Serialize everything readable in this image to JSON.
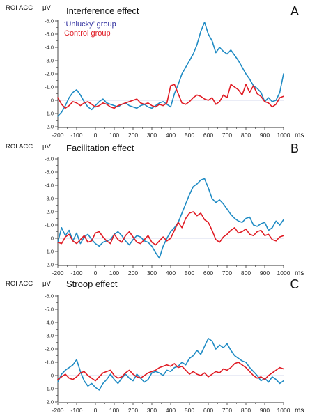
{
  "colors": {
    "unlucky": "#1f8bc4",
    "control": "#e01b24",
    "legend_unlucky": "#2e2e9e",
    "legend_control": "#e01b24",
    "axis": "#333333",
    "baseline": "#c8cde6"
  },
  "legend": {
    "unlucky": "‘Unlucky’ group",
    "control": "Control group"
  },
  "x_unit": "ms",
  "chart_data": [
    {
      "type": "line",
      "panel_letter": "A",
      "title": "Interference effect",
      "ylabel": "ROI ACC",
      "yunit": "μV",
      "xlim": [
        -200,
        1000
      ],
      "ylim": [
        -6.0,
        2.0
      ],
      "y_inverted": true,
      "x_ticks": [
        "-200",
        "-100",
        "0",
        "100",
        "200",
        "300",
        "400",
        "500",
        "600",
        "700",
        "800",
        "900",
        "1000"
      ],
      "y_ticks": [
        "-6.0",
        "-5.0",
        "-4.0",
        "-3.0",
        "-2.0",
        "-1.0",
        "0",
        "1.0",
        "2.0"
      ],
      "series": [
        {
          "name": "‘Unlucky’ group",
          "x": [
            -200,
            -180,
            -160,
            -140,
            -120,
            -100,
            -80,
            -60,
            -40,
            -20,
            0,
            20,
            40,
            60,
            80,
            100,
            120,
            140,
            160,
            180,
            200,
            220,
            240,
            260,
            280,
            300,
            320,
            340,
            360,
            380,
            400,
            420,
            440,
            460,
            480,
            500,
            520,
            540,
            560,
            580,
            600,
            620,
            640,
            660,
            680,
            700,
            720,
            740,
            760,
            780,
            800,
            820,
            840,
            860,
            880,
            900,
            920,
            940,
            960,
            980,
            1000
          ],
          "y": [
            1.2,
            0.9,
            0.4,
            -0.2,
            -0.6,
            -0.8,
            -0.4,
            0.1,
            0.5,
            0.7,
            0.4,
            0.1,
            -0.1,
            0.2,
            0.3,
            0.4,
            0.5,
            0.3,
            0.2,
            0.4,
            0.5,
            0.6,
            0.4,
            0.3,
            0.5,
            0.6,
            0.4,
            0.2,
            0.1,
            0.3,
            0.5,
            -0.5,
            -1.2,
            -2.0,
            -2.5,
            -3.0,
            -3.5,
            -4.2,
            -5.2,
            -5.9,
            -5.0,
            -4.5,
            -3.6,
            -4.0,
            -3.7,
            -3.5,
            -3.8,
            -3.4,
            -3.0,
            -2.5,
            -2.0,
            -1.6,
            -1.1,
            -0.9,
            -0.6,
            0.1,
            -0.2,
            0.1,
            0.0,
            -0.6,
            -2.0
          ]
        },
        {
          "name": "Control group",
          "x": [
            -200,
            -180,
            -160,
            -140,
            -120,
            -100,
            -80,
            -60,
            -40,
            -20,
            0,
            20,
            40,
            60,
            80,
            100,
            120,
            140,
            160,
            180,
            200,
            220,
            240,
            260,
            280,
            300,
            320,
            340,
            360,
            380,
            400,
            420,
            440,
            460,
            480,
            500,
            520,
            540,
            560,
            580,
            600,
            620,
            640,
            660,
            680,
            700,
            720,
            740,
            760,
            780,
            800,
            820,
            840,
            860,
            880,
            900,
            920,
            940,
            960,
            980,
            1000
          ],
          "y": [
            -0.2,
            0.3,
            0.6,
            0.4,
            0.1,
            0.2,
            0.4,
            0.2,
            0.1,
            0.3,
            0.5,
            0.4,
            0.2,
            0.3,
            0.5,
            0.6,
            0.4,
            0.3,
            0.2,
            0.1,
            0.0,
            -0.1,
            0.2,
            0.3,
            0.2,
            0.4,
            0.5,
            0.3,
            0.4,
            0.2,
            -1.1,
            -1.2,
            -0.5,
            0.2,
            0.3,
            0.1,
            -0.2,
            -0.4,
            -0.3,
            -0.1,
            0.0,
            -0.2,
            0.3,
            0.1,
            -0.4,
            -0.2,
            -1.2,
            -1.0,
            -0.8,
            -0.4,
            -1.2,
            -0.6,
            -1.1,
            -0.5,
            -0.3,
            0.1,
            0.2,
            0.5,
            0.3,
            -0.2,
            -0.3
          ]
        }
      ]
    },
    {
      "type": "line",
      "panel_letter": "B",
      "title": "Facilitation effect",
      "ylabel": "ROI ACC",
      "yunit": "μV",
      "xlim": [
        -200,
        1000
      ],
      "ylim": [
        -6.0,
        2.0
      ],
      "y_inverted": true,
      "x_ticks": [
        "-200",
        "-100",
        "0",
        "100",
        "200",
        "300",
        "400",
        "500",
        "600",
        "700",
        "800",
        "900",
        "1000"
      ],
      "y_ticks": [
        "-6.0",
        "-5.0",
        "-4.0",
        "-3.0",
        "-2.0",
        "-1.0",
        "0",
        "1.0",
        "2.0"
      ],
      "series": [
        {
          "name": "‘Unlucky’ group",
          "x": [
            -200,
            -180,
            -160,
            -140,
            -120,
            -100,
            -80,
            -60,
            -40,
            -20,
            0,
            20,
            40,
            60,
            80,
            100,
            120,
            140,
            160,
            180,
            200,
            220,
            240,
            260,
            280,
            300,
            320,
            340,
            360,
            380,
            400,
            420,
            440,
            460,
            480,
            500,
            520,
            540,
            560,
            580,
            600,
            620,
            640,
            660,
            680,
            700,
            720,
            740,
            760,
            780,
            800,
            820,
            840,
            860,
            880,
            900,
            920,
            940,
            960,
            980,
            1000
          ],
          "y": [
            0.3,
            -0.8,
            -0.2,
            -0.6,
            0.2,
            -0.4,
            0.4,
            -0.1,
            -0.3,
            0.1,
            0.4,
            0.6,
            0.3,
            0.2,
            0.1,
            -0.3,
            -0.5,
            -0.2,
            0.2,
            0.5,
            0.1,
            -0.2,
            -0.1,
            0.2,
            0.3,
            0.6,
            1.1,
            1.5,
            0.6,
            0.0,
            -0.5,
            -0.8,
            -1.2,
            -1.9,
            -2.6,
            -3.3,
            -3.9,
            -4.1,
            -4.4,
            -4.5,
            -3.8,
            -3.0,
            -2.7,
            -2.9,
            -2.6,
            -2.2,
            -1.8,
            -1.5,
            -1.3,
            -1.2,
            -1.5,
            -1.6,
            -1.0,
            -0.9,
            -1.1,
            -1.2,
            -0.6,
            -0.8,
            -1.3,
            -1.0,
            -1.4
          ]
        },
        {
          "name": "Control group",
          "x": [
            -200,
            -180,
            -160,
            -140,
            -120,
            -100,
            -80,
            -60,
            -40,
            -20,
            0,
            20,
            40,
            60,
            80,
            100,
            120,
            140,
            160,
            180,
            200,
            220,
            240,
            260,
            280,
            300,
            320,
            340,
            360,
            380,
            400,
            420,
            440,
            460,
            480,
            500,
            520,
            540,
            560,
            580,
            600,
            620,
            640,
            660,
            680,
            700,
            720,
            740,
            760,
            780,
            800,
            820,
            840,
            860,
            880,
            900,
            920,
            940,
            960,
            980,
            1000
          ],
          "y": [
            0.3,
            0.4,
            -0.1,
            -0.3,
            0.2,
            0.4,
            0.1,
            -0.2,
            0.3,
            0.2,
            -0.4,
            -0.5,
            -0.1,
            0.2,
            0.4,
            -0.3,
            0.1,
            0.3,
            -0.2,
            -0.5,
            -0.1,
            0.3,
            0.4,
            0.1,
            -0.2,
            0.3,
            0.5,
            0.2,
            -0.1,
            0.2,
            0.0,
            -0.6,
            -1.2,
            -0.8,
            -1.5,
            -1.9,
            -2.0,
            -1.7,
            -1.9,
            -1.4,
            -1.2,
            -0.6,
            0.1,
            0.3,
            -0.1,
            -0.3,
            -0.6,
            -0.8,
            -0.4,
            -0.5,
            -0.7,
            -0.3,
            -0.2,
            -0.5,
            -0.6,
            -0.2,
            -0.3,
            0.1,
            0.2,
            -0.1,
            -0.2
          ]
        }
      ]
    },
    {
      "type": "line",
      "panel_letter": "C",
      "title": "Stroop effect",
      "ylabel": "ROI ACC",
      "yunit": "μV",
      "xlim": [
        -200,
        1000
      ],
      "ylim": [
        -6.0,
        2.0
      ],
      "y_inverted": true,
      "x_ticks": [
        "-200",
        "-100",
        "0",
        "100",
        "200",
        "300",
        "400",
        "500",
        "600",
        "700",
        "800",
        "900",
        "1000"
      ],
      "y_ticks": [
        "-6.0",
        "-5.0",
        "-4.0",
        "-3.0",
        "-2.0",
        "-1.0",
        "0",
        "1.0",
        "2.0"
      ],
      "series": [
        {
          "name": "‘Unlucky’ group",
          "x": [
            -200,
            -180,
            -160,
            -140,
            -120,
            -100,
            -80,
            -60,
            -40,
            -20,
            0,
            20,
            40,
            60,
            80,
            100,
            120,
            140,
            160,
            180,
            200,
            220,
            240,
            260,
            280,
            300,
            320,
            340,
            360,
            380,
            400,
            420,
            440,
            460,
            480,
            500,
            520,
            540,
            560,
            580,
            600,
            620,
            640,
            660,
            680,
            700,
            720,
            740,
            760,
            780,
            800,
            820,
            840,
            860,
            880,
            900,
            920,
            940,
            960,
            980,
            1000
          ],
          "y": [
            0.5,
            -0.1,
            -0.4,
            -0.6,
            -0.8,
            -1.2,
            -0.3,
            0.4,
            0.8,
            0.6,
            0.9,
            1.1,
            0.6,
            0.3,
            -0.1,
            0.3,
            0.6,
            0.2,
            -0.1,
            0.2,
            0.4,
            -0.1,
            0.2,
            0.5,
            0.3,
            -0.2,
            -0.3,
            -0.2,
            0.0,
            -0.4,
            -0.3,
            -0.6,
            -0.7,
            -1.0,
            -0.8,
            -1.3,
            -1.5,
            -1.9,
            -1.6,
            -2.2,
            -2.8,
            -2.6,
            -2.0,
            -2.3,
            -2.1,
            -2.4,
            -1.9,
            -1.5,
            -1.3,
            -1.1,
            -1.0,
            -0.6,
            -0.3,
            0.0,
            0.4,
            0.2,
            0.5,
            0.1,
            0.3,
            0.6,
            0.4
          ]
        },
        {
          "name": "Control group",
          "x": [
            -200,
            -180,
            -160,
            -140,
            -120,
            -100,
            -80,
            -60,
            -40,
            -20,
            0,
            20,
            40,
            60,
            80,
            100,
            120,
            140,
            160,
            180,
            200,
            220,
            240,
            260,
            280,
            300,
            320,
            340,
            360,
            380,
            400,
            420,
            440,
            460,
            480,
            500,
            520,
            540,
            560,
            580,
            600,
            620,
            640,
            660,
            680,
            700,
            720,
            740,
            760,
            780,
            800,
            820,
            840,
            860,
            880,
            900,
            920,
            940,
            960,
            980,
            1000
          ],
          "y": [
            0.3,
            0.1,
            -0.1,
            0.2,
            0.3,
            0.1,
            -0.2,
            -0.3,
            0.0,
            0.2,
            0.4,
            0.1,
            -0.2,
            -0.3,
            -0.4,
            0.0,
            0.2,
            0.1,
            -0.2,
            -0.4,
            -0.1,
            0.1,
            0.2,
            0.0,
            -0.2,
            -0.3,
            -0.4,
            -0.6,
            -0.7,
            -0.8,
            -0.7,
            -0.9,
            -0.6,
            -0.7,
            -0.4,
            -0.1,
            -0.3,
            -0.1,
            0.0,
            -0.2,
            0.1,
            -0.1,
            -0.3,
            -0.2,
            -0.5,
            -0.4,
            -0.6,
            -0.9,
            -1.0,
            -0.8,
            -0.6,
            -0.3,
            0.0,
            0.2,
            0.1,
            0.3,
            0.0,
            -0.2,
            -0.4,
            -0.6,
            -0.5
          ]
        }
      ]
    }
  ]
}
